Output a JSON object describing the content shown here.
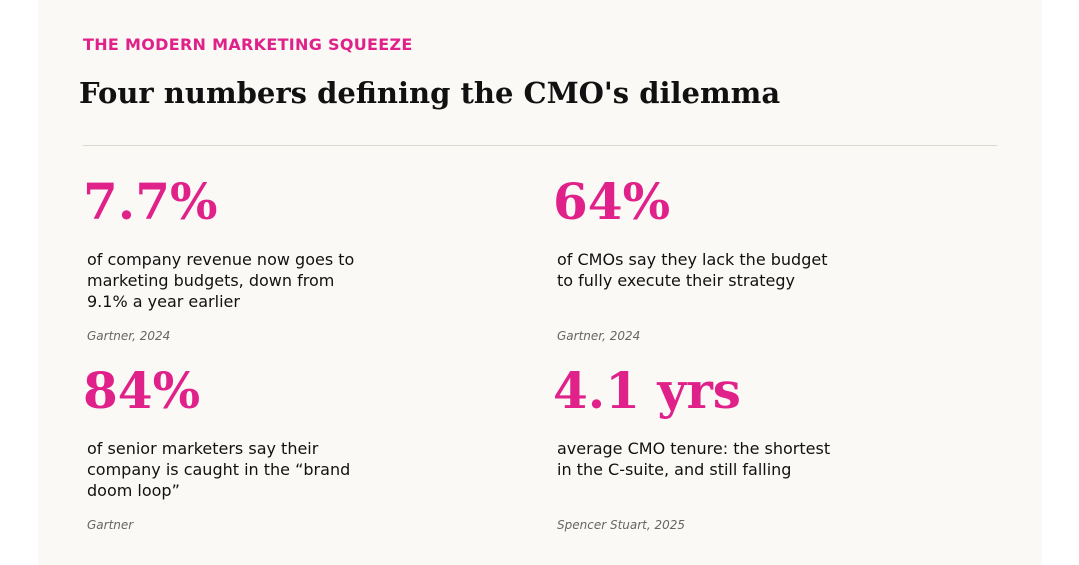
{
  "header": {
    "kicker": "THE MODERN MARKETING SQUEEZE",
    "title": "Four numbers defining the CMO's dilemma"
  },
  "colors": {
    "accent": "#e0218a",
    "background": "#faf9f6",
    "text": "#111111",
    "source_text": "#666666",
    "divider": "#dcd9d2"
  },
  "stats": [
    {
      "value": "7.7%",
      "description": "of company revenue now goes to marketing budgets, down from 9.1% a year earlier",
      "source": "Gartner, 2024"
    },
    {
      "value": "64%",
      "description": "of CMOs say they lack the budget to fully execute their strategy",
      "source": "Gartner, 2024"
    },
    {
      "value": "84%",
      "description": "of senior marketers say their company is caught in the “brand doom loop”",
      "source": "Gartner"
    },
    {
      "value": "4.1 yrs",
      "description": "average CMO tenure: the shortest in the C-suite, and still falling",
      "source": "Spencer Stuart, 2025"
    }
  ]
}
